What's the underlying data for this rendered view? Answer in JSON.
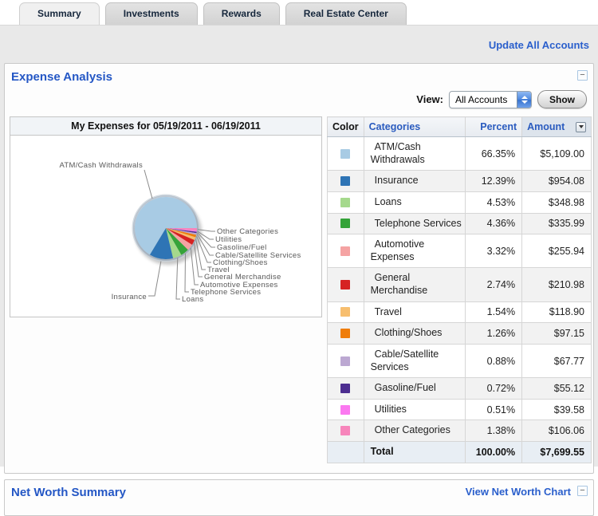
{
  "tabs": [
    {
      "label": "Summary",
      "active": true
    },
    {
      "label": "Investments",
      "active": false
    },
    {
      "label": "Rewards",
      "active": false
    },
    {
      "label": "Real Estate Center",
      "active": false
    }
  ],
  "update_link": "Update All Accounts",
  "expense_panel": {
    "title": "Expense Analysis",
    "collapse_icon": "−",
    "view_label": "View:",
    "view_value": "All Accounts",
    "show_button": "Show"
  },
  "chart_data": {
    "type": "pie",
    "title": "My Expenses for 05/19/2011 - 06/19/2011",
    "legend_position": "callout-labels",
    "slices": [
      {
        "label": "ATM/Cash Withdrawals",
        "percent": 66.35,
        "amount": "$5,109.00",
        "color": "#a8cbe4"
      },
      {
        "label": "Insurance",
        "percent": 12.39,
        "amount": "$954.08",
        "color": "#2e74b5"
      },
      {
        "label": "Loans",
        "percent": 4.53,
        "amount": "$348.98",
        "color": "#a5d98c"
      },
      {
        "label": "Telephone Services",
        "percent": 4.36,
        "amount": "$335.99",
        "color": "#35a339"
      },
      {
        "label": "Automotive Expenses",
        "percent": 3.32,
        "amount": "$255.94",
        "color": "#f5a3a3"
      },
      {
        "label": "General Merchandise",
        "percent": 2.74,
        "amount": "$210.98",
        "color": "#d62222"
      },
      {
        "label": "Travel",
        "percent": 1.54,
        "amount": "$118.90",
        "color": "#f7be6e"
      },
      {
        "label": "Clothing/Shoes",
        "percent": 1.26,
        "amount": "$97.15",
        "color": "#ef7d0a"
      },
      {
        "label": "Cable/Satellite Services",
        "percent": 0.88,
        "amount": "$67.77",
        "color": "#bca8d2"
      },
      {
        "label": "Gasoline/Fuel",
        "percent": 0.72,
        "amount": "$55.12",
        "color": "#4c2e90"
      },
      {
        "label": "Utilities",
        "percent": 0.51,
        "amount": "$39.58",
        "color": "#fb78f0"
      },
      {
        "label": "Other Categories",
        "percent": 1.38,
        "amount": "$106.06",
        "color": "#f785bb"
      }
    ],
    "total": {
      "label": "Total",
      "percent_text": "100.00%",
      "amount": "$7,699.55"
    }
  },
  "expense_table": {
    "headers": {
      "color": "Color",
      "categories": "Categories",
      "percent": "Percent",
      "amount": "Amount"
    }
  },
  "net_worth": {
    "title": "Net Worth Summary",
    "link": "View Net Worth Chart",
    "collapse_icon": "−"
  }
}
